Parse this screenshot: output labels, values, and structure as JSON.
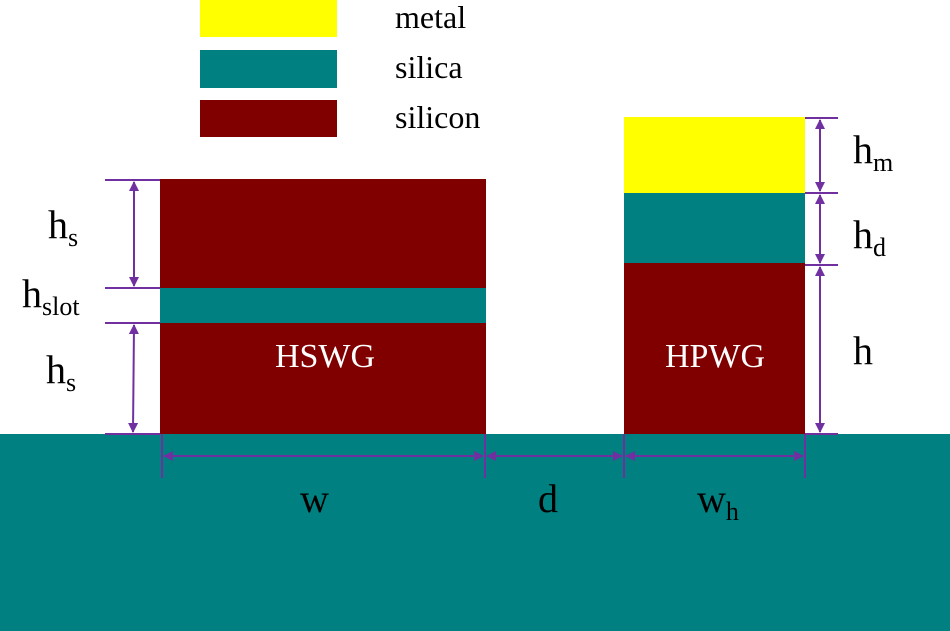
{
  "colors": {
    "metal": "#FFFF00",
    "silica": "#008080",
    "silicon": "#800000",
    "dimension": "#7030A0"
  },
  "legend": [
    {
      "label": "metal",
      "color": "#FFFF00"
    },
    {
      "label": "silica",
      "color": "#008080"
    },
    {
      "label": "silicon",
      "color": "#800000"
    }
  ],
  "hswg": {
    "name": "HSWG",
    "hs_top": {
      "main": "h",
      "sub": "s"
    },
    "hslot": {
      "main": "h",
      "sub": "slot"
    },
    "hs_bottom": {
      "main": "h",
      "sub": "s"
    },
    "width": {
      "main": "w",
      "sub": ""
    }
  },
  "gap": {
    "main": "d"
  },
  "hpwg": {
    "name": "HPWG",
    "hm": {
      "main": "h",
      "sub": "m"
    },
    "hd": {
      "main": "h",
      "sub": "d"
    },
    "h": {
      "main": "h"
    },
    "width": {
      "main": "w",
      "sub": "h"
    }
  }
}
